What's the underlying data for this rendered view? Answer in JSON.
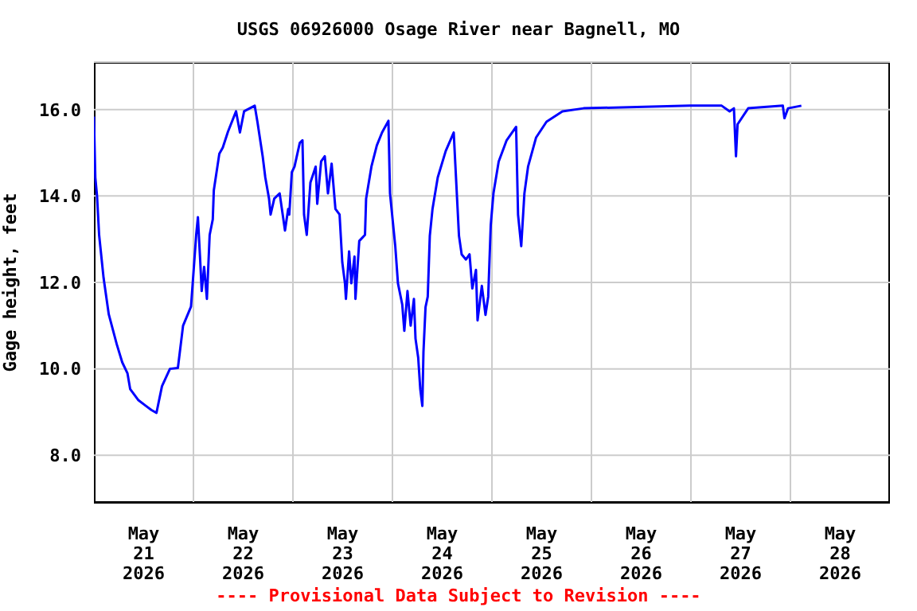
{
  "chart_data": {
    "type": "line",
    "title": "USGS 06926000 Osage River near Bagnell, MO",
    "ylabel": "Gage height, feet",
    "annotations": [
      "---- Provisional Data Subject to Revision ----"
    ],
    "x": [
      "2026-05-21T00:00",
      "2026-05-21T00:20",
      "2026-05-21T00:45",
      "2026-05-21T01:15",
      "2026-05-21T02:20",
      "2026-05-21T03:35",
      "2026-05-21T05:30",
      "2026-05-21T06:50",
      "2026-05-21T08:05",
      "2026-05-21T08:45",
      "2026-05-21T10:40",
      "2026-05-21T12:35",
      "2026-05-21T13:50",
      "2026-05-21T15:05",
      "2026-05-21T16:25",
      "2026-05-21T18:20",
      "2026-05-21T20:15",
      "2026-05-21T21:30",
      "2026-05-21T23:25",
      "2026-05-21T23:50",
      "2026-05-22T00:40",
      "2026-05-22T01:05",
      "2026-05-22T01:35",
      "2026-05-22T02:00",
      "2026-05-22T02:35",
      "2026-05-22T03:15",
      "2026-05-22T03:55",
      "2026-05-22T04:40",
      "2026-05-22T04:55",
      "2026-05-22T06:15",
      "2026-05-22T07:05",
      "2026-05-22T08:20",
      "2026-05-22T10:17",
      "2026-05-22T11:13",
      "2026-05-22T12:13",
      "2026-05-22T14:47",
      "2026-05-22T15:26",
      "2026-05-22T16:42",
      "2026-05-22T17:20",
      "2026-05-22T18:14",
      "2026-05-22T18:37",
      "2026-05-22T19:30",
      "2026-05-22T20:48",
      "2026-05-22T22:05",
      "2026-05-22T22:51",
      "2026-05-22T23:07",
      "2026-05-22T23:44",
      "2026-05-23T00:23",
      "2026-05-23T01:39",
      "2026-05-23T02:18",
      "2026-05-23T02:41",
      "2026-05-23T03:20",
      "2026-05-23T04:13",
      "2026-05-23T05:29",
      "2026-05-23T05:52",
      "2026-05-23T06:48",
      "2026-05-23T07:41",
      "2026-05-23T08:27",
      "2026-05-23T09:20",
      "2026-05-23T10:15",
      "2026-05-23T11:15",
      "2026-05-23T11:54",
      "2026-05-23T12:33",
      "2026-05-23T12:47",
      "2026-05-23T13:33",
      "2026-05-23T14:05",
      "2026-05-23T14:51",
      "2026-05-23T15:05",
      "2026-05-23T16:00",
      "2026-05-23T17:23",
      "2026-05-23T17:39",
      "2026-05-23T18:56",
      "2026-05-23T20:14",
      "2026-05-23T21:30",
      "2026-05-23T23:02",
      "2026-05-23T23:25",
      "2026-05-24T00:41",
      "2026-05-24T01:20",
      "2026-05-24T02:22",
      "2026-05-24T02:52",
      "2026-05-24T03:38",
      "2026-05-24T04:24",
      "2026-05-24T05:11",
      "2026-05-24T05:34",
      "2026-05-24T06:13",
      "2026-05-24T06:43",
      "2026-05-24T07:13",
      "2026-05-24T07:29",
      "2026-05-24T07:59",
      "2026-05-24T08:31",
      "2026-05-24T09:01",
      "2026-05-24T09:40",
      "2026-05-24T10:56",
      "2026-05-24T12:51",
      "2026-05-24T14:47",
      "2026-05-24T15:10",
      "2026-05-24T16:03",
      "2026-05-24T16:42",
      "2026-05-24T17:44",
      "2026-05-24T18:36",
      "2026-05-24T19:16",
      "2026-05-24T20:09",
      "2026-05-24T20:32",
      "2026-05-24T21:34",
      "2026-05-24T22:27",
      "2026-05-24T23:06",
      "2026-05-24T23:43",
      "2026-05-25T00:22",
      "2026-05-25T01:38",
      "2026-05-25T03:33",
      "2026-05-25T05:50",
      "2026-05-25T06:18",
      "2026-05-25T07:04",
      "2026-05-25T07:50",
      "2026-05-25T08:43",
      "2026-05-25T10:38",
      "2026-05-25T13:10",
      "2026-05-25T17:00",
      "2026-05-25T22:07",
      "2026-05-26T10:57",
      "2026-05-26T23:44",
      "2026-05-27T07:25",
      "2026-05-27T09:20",
      "2026-05-27T10:22",
      "2026-05-27T10:52",
      "2026-05-27T11:15",
      "2026-05-27T13:49",
      "2026-05-27T22:10",
      "2026-05-27T22:33",
      "2026-05-27T23:26",
      "2026-05-28T02:38"
    ],
    "values": [
      15.84,
      14.43,
      14.0,
      13.1,
      12.1,
      11.26,
      10.57,
      10.15,
      9.9,
      9.53,
      9.28,
      9.14,
      9.05,
      8.98,
      9.6,
      10.0,
      10.02,
      11.0,
      11.44,
      11.99,
      13.1,
      13.51,
      12.6,
      11.8,
      12.36,
      11.62,
      13.1,
      13.46,
      14.13,
      14.98,
      15.12,
      15.49,
      15.96,
      15.47,
      15.96,
      16.09,
      15.72,
      14.92,
      14.43,
      13.94,
      13.57,
      13.94,
      14.06,
      13.2,
      13.7,
      13.57,
      14.55,
      14.68,
      15.23,
      15.29,
      13.57,
      13.1,
      14.31,
      14.68,
      13.82,
      14.8,
      14.92,
      14.06,
      14.75,
      13.7,
      13.57,
      12.47,
      11.98,
      11.62,
      12.72,
      11.98,
      12.6,
      11.62,
      12.96,
      13.1,
      13.94,
      14.68,
      15.17,
      15.47,
      15.74,
      14.06,
      12.84,
      11.98,
      11.49,
      10.88,
      11.8,
      11.0,
      11.62,
      10.7,
      10.26,
      9.53,
      9.14,
      10.39,
      11.43,
      11.67,
      13.08,
      13.7,
      14.43,
      15.04,
      15.47,
      14.74,
      13.08,
      12.65,
      12.53,
      12.65,
      11.86,
      12.29,
      11.12,
      11.92,
      11.25,
      11.67,
      13.33,
      14.06,
      14.8,
      15.29,
      15.6,
      13.57,
      12.84,
      14.06,
      14.68,
      15.35,
      15.72,
      15.96,
      16.03,
      16.06,
      16.09,
      16.09,
      15.96,
      16.03,
      14.92,
      15.66,
      16.03,
      16.09,
      15.8,
      16.03,
      16.09
    ],
    "color": "#0000ff",
    "xlim": [
      "2026-05-21",
      "2026-05-29"
    ],
    "xticks": [
      {
        "value": "2026-05-21T12:00",
        "label": "May\n21\n2026"
      },
      {
        "value": "2026-05-22T12:00",
        "label": "May\n22\n2026"
      },
      {
        "value": "2026-05-23T12:00",
        "label": "May\n23\n2026"
      },
      {
        "value": "2026-05-24T12:00",
        "label": "May\n24\n2026"
      },
      {
        "value": "2026-05-25T12:00",
        "label": "May\n25\n2026"
      },
      {
        "value": "2026-05-26T12:00",
        "label": "May\n26\n2026"
      },
      {
        "value": "2026-05-27T12:00",
        "label": "May\n27\n2026"
      },
      {
        "value": "2026-05-28T12:00",
        "label": "May\n28\n2026"
      },
      {
        "value": "2026-05-22",
        "label": null
      },
      {
        "value": "2026-05-23",
        "label": null
      },
      {
        "value": "2026-05-24",
        "label": null
      },
      {
        "value": "2026-05-25",
        "label": null
      },
      {
        "value": "2026-05-26",
        "label": null
      },
      {
        "value": "2026-05-27",
        "label": null
      },
      {
        "value": "2026-05-28",
        "label": null
      }
    ],
    "ylim": [
      6.9,
      17.1
    ],
    "yticks": [
      {
        "value": 8,
        "label": "8.0"
      },
      {
        "value": 10,
        "label": "10.0"
      },
      {
        "value": 12,
        "label": "12.0"
      },
      {
        "value": 14,
        "label": "14.0"
      },
      {
        "value": 16,
        "label": "16.0"
      }
    ],
    "grid": true
  }
}
